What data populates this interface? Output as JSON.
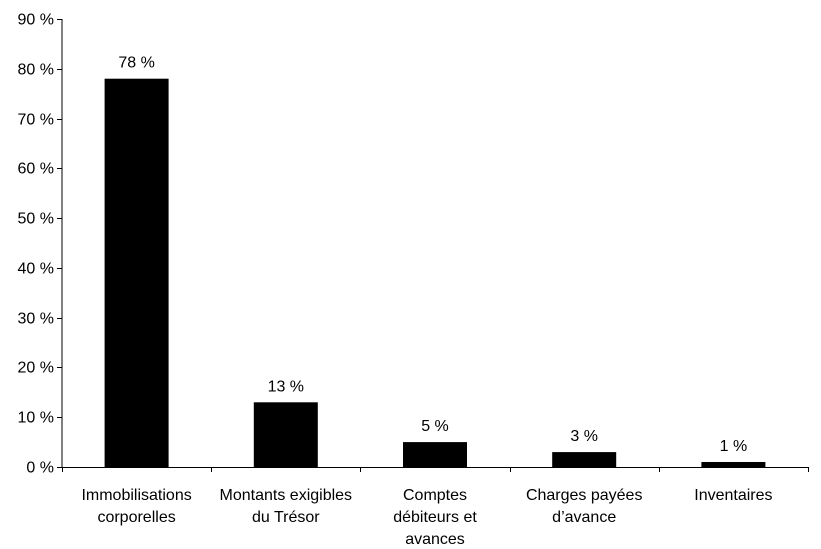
{
  "chart_data": {
    "type": "bar",
    "categories": [
      [
        "Immobilisations",
        "corporelles"
      ],
      [
        "Montants exigibles",
        "du Trésor"
      ],
      [
        "Comptes",
        "débiteurs et",
        "avances"
      ],
      [
        "Charges payées",
        "d’avance"
      ],
      [
        "Inventaires"
      ]
    ],
    "values": [
      78,
      13,
      5,
      3,
      1
    ],
    "data_labels": [
      "78 %",
      "13 %",
      "5 %",
      "3 %",
      "1 %"
    ],
    "yticks": [
      0,
      10,
      20,
      30,
      40,
      50,
      60,
      70,
      80,
      90
    ],
    "ytick_labels": [
      "0 %",
      "10 %",
      "20 %",
      "30 %",
      "40 %",
      "50 %",
      "60 %",
      "70 %",
      "80 %",
      "90 %"
    ],
    "ylim": [
      0,
      90
    ],
    "bar_color": "#000000",
    "grid": false,
    "legend": "none",
    "title": "",
    "xlabel": "",
    "ylabel": ""
  }
}
